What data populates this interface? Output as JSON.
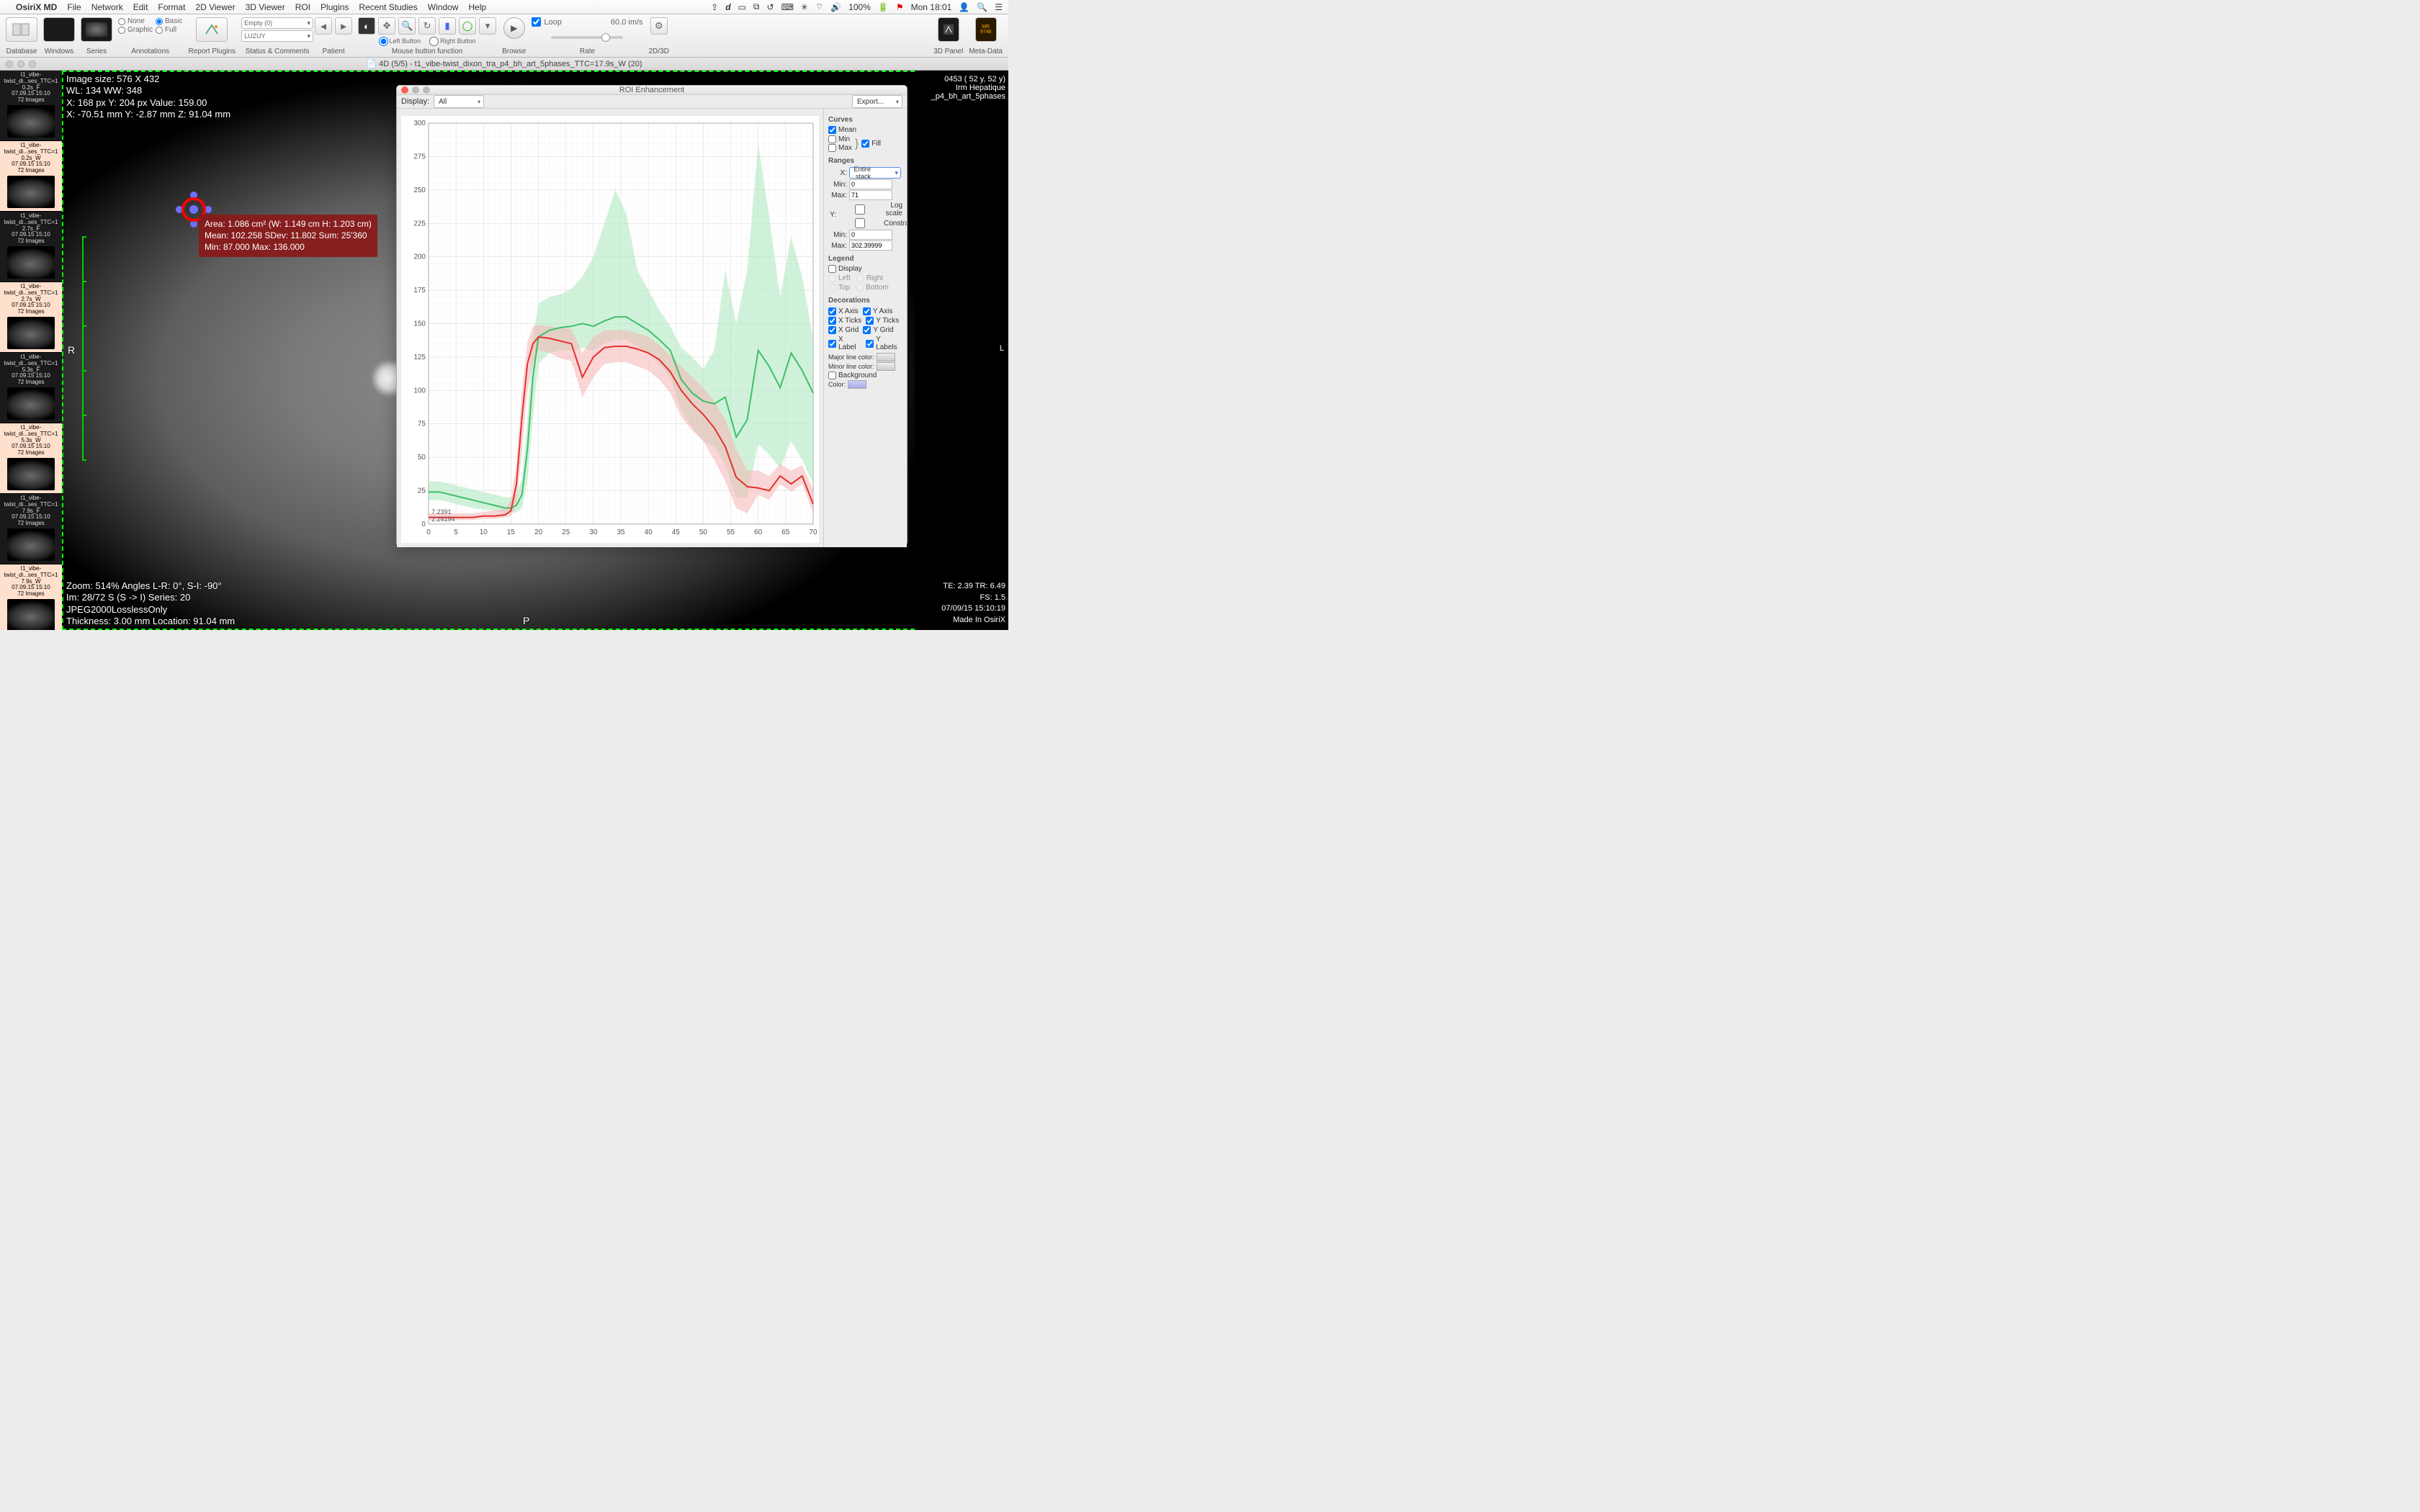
{
  "menubar": {
    "app": "OsiriX MD",
    "items": [
      "File",
      "Network",
      "Edit",
      "Format",
      "2D Viewer",
      "3D Viewer",
      "ROI",
      "Plugins",
      "Recent Studies",
      "Window",
      "Help"
    ],
    "battery": "100%",
    "clock": "Mon 18:01"
  },
  "toolbar": {
    "labels": {
      "database": "Database",
      "windows": "Windows",
      "series": "Series",
      "annotations": "Annotations",
      "reportplugins": "Report Plugins",
      "status": "Status & Comments",
      "patient": "Patient",
      "mouse": "Mouse button function",
      "browse": "Browse",
      "rate": "Rate",
      "d2d3": "2D/3D",
      "panel3d": "3D Panel",
      "metadata": "Meta-Data"
    },
    "radios_ann": {
      "none": "None",
      "basic": "Basic",
      "graphic": "Graphic",
      "full": "Full",
      "basic_checked": true
    },
    "combo_empty": "Empty (0)",
    "combo_patient": "LUZUY",
    "mouse": {
      "left": "Left Button",
      "right": "Right Button",
      "left_checked": true
    },
    "loop": {
      "label": "Loop",
      "checked": true,
      "rate": "60.0 im/s"
    }
  },
  "wintitle": "4D (5/5) - t1_vibe-twist_dixon_tra_p4_bh_art_5phases_TTC=17.9s_W (20)",
  "thumbs": [
    {
      "l1": "t1_vibe-",
      "l2": "twist_di...ses_TTC=1",
      "l3": "0.2s_F",
      "l4": "07.09.15 15:10",
      "l5": "72 Images",
      "hl": false
    },
    {
      "l1": "t1_vibe-",
      "l2": "twist_di...ses_TTC=1",
      "l3": "0.2s_W",
      "l4": "07.09.15 15:10",
      "l5": "72 Images",
      "hl": true
    },
    {
      "l1": "t1_vibe-",
      "l2": "twist_di...ses_TTC=1",
      "l3": "2.7s_F",
      "l4": "07.09.15 15:10",
      "l5": "72 Images",
      "hl": false
    },
    {
      "l1": "t1_vibe-",
      "l2": "twist_di...ses_TTC=1",
      "l3": "2.7s_W",
      "l4": "07.09.15 15:10",
      "l5": "72 Images",
      "hl": true
    },
    {
      "l1": "t1_vibe-",
      "l2": "twist_di...ses_TTC=1",
      "l3": "5.3s_F",
      "l4": "07.09.15 15:10",
      "l5": "72 Images",
      "hl": false
    },
    {
      "l1": "t1_vibe-",
      "l2": "twist_di...ses_TTC=1",
      "l3": "5.3s_W",
      "l4": "07.09.15 15:10",
      "l5": "72 Images",
      "hl": true
    },
    {
      "l1": "t1_vibe-",
      "l2": "twist_di...ses_TTC=1",
      "l3": "7.9s_F",
      "l4": "07.09.15 15:10",
      "l5": "72 Images",
      "hl": false
    },
    {
      "l1": "t1_vibe-",
      "l2": "twist_di...ses_TTC=1",
      "l3": "7.9s_W",
      "l4": "07.09.15 15:10",
      "l5": "72 Images",
      "hl": true
    }
  ],
  "viewer": {
    "tl": [
      "Image size: 576 X 432",
      "WL: 134 WW: 348",
      "X: 168 px Y: 204 px Value: 159.00",
      "X: -70.51 mm Y: -2.87 mm Z: 91.04 mm"
    ],
    "bl": [
      "Zoom: 514% Angles L-R: 0°, S-I: -90°",
      "Im: 28/72 S (S -> I) Series: 20",
      "JPEG2000LosslessOnly",
      "Thickness: 3.00 mm Location: 91.04 mm"
    ],
    "roi": [
      "Area: 1.086 cm² (W: 1.149 cm H: 1.203 cm)",
      "Mean: 102.258  SDev: 11.802  Sum: 25'360",
      "Min: 87.000   Max: 136.000"
    ],
    "r": "R",
    "p": "P"
  },
  "rightinfo": {
    "top": [
      "0453 ( 52 y,  52 y)",
      "Irm Hepatique",
      "_p4_bh_art_5phases"
    ],
    "bottom": [
      "TE: 2.39 TR: 6.49",
      "FS: 1.5",
      "07/09/15 15:10:19",
      "Made In OsiriX"
    ],
    "l": "L"
  },
  "roipanel": {
    "title": "ROI Enhancement",
    "display_label": "Display:",
    "display_value": "All",
    "export": "Export...",
    "side": {
      "curves": "Curves",
      "mean": "Mean",
      "min": "Min",
      "max": "Max",
      "fill": "Fill",
      "ranges": "Ranges",
      "x": "X:",
      "entire": "Entire stack",
      "minL": "Min:",
      "maxL": "Max:",
      "y": "Y:",
      "log": "Log scale",
      "constrain": "Constrain",
      "xmin": "0",
      "xmax": "71",
      "ymin": "0",
      "ymax": "302.39999",
      "legend": "Legend",
      "display": "Display",
      "left": "Left",
      "right": "Right",
      "top": "Top",
      "bottom": "Bottom",
      "decor": "Decorations",
      "xaxis": "X Axis",
      "yaxis": "Y Axis",
      "xticks": "X Ticks",
      "yticks": "Y Ticks",
      "xgrid": "X Grid",
      "ygrid": "Y Grid",
      "xlabel": "X Label",
      "ylabels": "Y Labels",
      "major": "Major line color:",
      "minor": "Minor line color:",
      "bg": "Background",
      "color": "Color:"
    }
  },
  "chart": {
    "type": "line",
    "xlim": [
      0,
      70
    ],
    "ylim": [
      0,
      300
    ],
    "xtick_step": 5,
    "ytick_step": 25,
    "background_color": "#ffffff",
    "grid_color": "#d9d9d9",
    "colors": {
      "red": "#e53030",
      "green": "#3fbf6a",
      "red_fill": "#f5b4b4",
      "green_fill": "#a9e8bc"
    },
    "annot": [
      "7.2391",
      "2.24194"
    ],
    "x": [
      0,
      2,
      4,
      6,
      8,
      10,
      12,
      14,
      15,
      16,
      17,
      18,
      19,
      20,
      22,
      24,
      26,
      28,
      30,
      32,
      34,
      36,
      38,
      40,
      42,
      44,
      46,
      48,
      50,
      52,
      54,
      56,
      58,
      60,
      62,
      64,
      66,
      68,
      70
    ],
    "red_mean": [
      5,
      5,
      5,
      5,
      5,
      6,
      6,
      7,
      10,
      30,
      80,
      120,
      135,
      140,
      139,
      137,
      135,
      110,
      125,
      132,
      133,
      133,
      131,
      128,
      123,
      114,
      100,
      90,
      82,
      72,
      58,
      35,
      28,
      27,
      25,
      36,
      30,
      36,
      15
    ],
    "red_lo": [
      3,
      3,
      3,
      3,
      3,
      4,
      4,
      5,
      6,
      15,
      55,
      100,
      120,
      130,
      128,
      124,
      122,
      95,
      110,
      120,
      121,
      121,
      118,
      115,
      108,
      98,
      80,
      70,
      62,
      48,
      32,
      12,
      8,
      22,
      18,
      30,
      24,
      30,
      8
    ],
    "red_hi": [
      8,
      8,
      8,
      8,
      8,
      9,
      10,
      12,
      18,
      45,
      100,
      136,
      148,
      149,
      148,
      147,
      146,
      128,
      140,
      145,
      145,
      145,
      143,
      140,
      134,
      126,
      118,
      110,
      102,
      92,
      78,
      56,
      40,
      40,
      36,
      45,
      40,
      44,
      26
    ],
    "grn_mean": [
      24,
      24,
      22,
      20,
      18,
      16,
      14,
      12,
      12,
      14,
      22,
      56,
      110,
      140,
      145,
      147,
      148,
      150,
      148,
      152,
      155,
      155,
      150,
      145,
      138,
      130,
      108,
      98,
      92,
      90,
      95,
      65,
      78,
      130,
      118,
      102,
      128,
      115,
      98
    ],
    "grn_lo": [
      18,
      18,
      16,
      14,
      12,
      11,
      10,
      8,
      8,
      9,
      12,
      32,
      80,
      120,
      128,
      130,
      130,
      132,
      130,
      135,
      138,
      138,
      133,
      128,
      120,
      110,
      85,
      72,
      62,
      58,
      45,
      20,
      20,
      60,
      52,
      42,
      62,
      48,
      30
    ],
    "grn_hi": [
      32,
      32,
      30,
      28,
      26,
      24,
      22,
      20,
      20,
      22,
      34,
      78,
      140,
      165,
      170,
      172,
      176,
      185,
      200,
      225,
      250,
      232,
      190,
      175,
      160,
      148,
      132,
      125,
      116,
      130,
      190,
      150,
      190,
      285,
      230,
      170,
      215,
      185,
      138
    ]
  }
}
